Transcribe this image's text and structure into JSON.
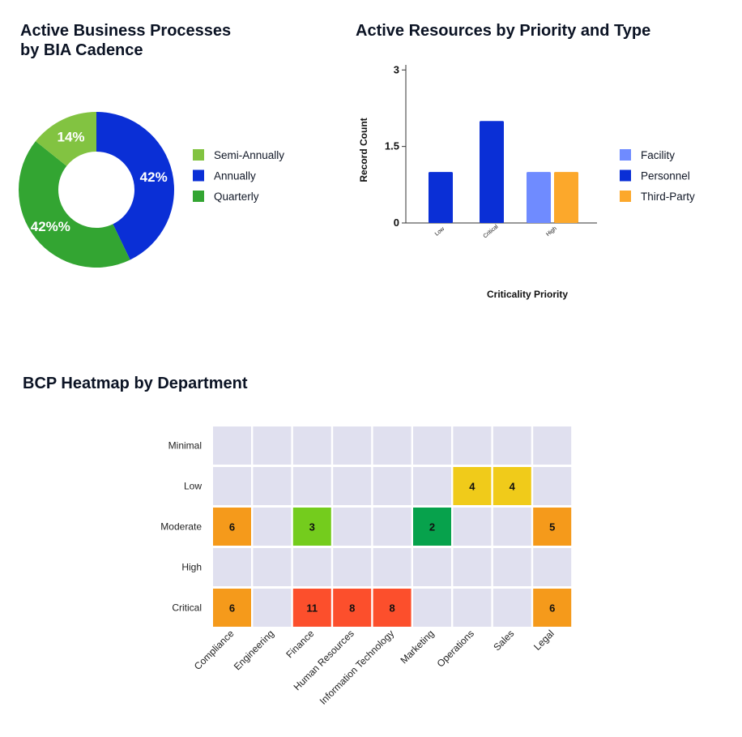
{
  "chart_data": [
    {
      "type": "pie",
      "title_lines": [
        "Active Business Processes",
        "by BIA Cadence"
      ],
      "slices": [
        {
          "name": "Annually",
          "value": 42,
          "label": "42%",
          "color": "#0a2fd6"
        },
        {
          "name": "Quarterly",
          "value": 42,
          "label": "42%%",
          "color": "#33a532"
        },
        {
          "name": "Semi-Annually",
          "value": 14,
          "label": "14%",
          "color": "#82c341"
        }
      ],
      "legend": [
        {
          "label": "Semi-Annually",
          "color": "#82c341"
        },
        {
          "label": "Annually",
          "color": "#0a2fd6"
        },
        {
          "label": "Quarterly",
          "color": "#33a532"
        }
      ],
      "legend_position": "right"
    },
    {
      "type": "bar",
      "title": "Active Resources by Priority and Type",
      "xlabel": "Criticality Priority",
      "ylabel": "Record Count",
      "ylim": [
        0,
        3.1
      ],
      "yticks": [
        {
          "value": 0,
          "label": "0"
        },
        {
          "value": 1.5,
          "label": "1.5"
        },
        {
          "value": 3,
          "label": "3"
        }
      ],
      "categories": [
        "Low",
        "Critical",
        "High"
      ],
      "series": [
        {
          "name": "Facility",
          "color": "#6f8bff",
          "values": [
            null,
            null,
            1
          ]
        },
        {
          "name": "Personnel",
          "color": "#0a2fd6",
          "values": [
            1,
            2,
            null
          ]
        },
        {
          "name": "Third-Party",
          "color": "#fca82b",
          "values": [
            null,
            null,
            1
          ]
        }
      ],
      "legend_position": "right",
      "grid": false
    },
    {
      "type": "heatmap",
      "title": "BCP Heatmap by Department",
      "rows": [
        "Minimal",
        "Low",
        "Moderate",
        "High",
        "Critical"
      ],
      "columns": [
        "Compliance",
        "Engineering",
        "Finance",
        "Human Resources",
        "Information Technology",
        "Marketing",
        "Operations",
        "Sales",
        "Legal"
      ],
      "cells": [
        {
          "row": "Low",
          "column": "Operations",
          "value": 4,
          "color": "#f0cb1a"
        },
        {
          "row": "Low",
          "column": "Sales",
          "value": 4,
          "color": "#f0cb1a"
        },
        {
          "row": "Moderate",
          "column": "Compliance",
          "value": 6,
          "color": "#f59a1b"
        },
        {
          "row": "Moderate",
          "column": "Finance",
          "value": 3,
          "color": "#74cc1d"
        },
        {
          "row": "Moderate",
          "column": "Marketing",
          "value": 2,
          "color": "#07a24c"
        },
        {
          "row": "Moderate",
          "column": "Legal",
          "value": 5,
          "color": "#f59a1b"
        },
        {
          "row": "Critical",
          "column": "Compliance",
          "value": 6,
          "color": "#f59a1b"
        },
        {
          "row": "Critical",
          "column": "Finance",
          "value": 11,
          "color": "#fc4f2c"
        },
        {
          "row": "Critical",
          "column": "Human Resources",
          "value": 8,
          "color": "#fc4f2c"
        },
        {
          "row": "Critical",
          "column": "Information Technology",
          "value": 8,
          "color": "#fc4f2c"
        },
        {
          "row": "Critical",
          "column": "Legal",
          "value": 6,
          "color": "#f59a1b"
        }
      ],
      "empty_color": "#e0e0ef"
    }
  ]
}
